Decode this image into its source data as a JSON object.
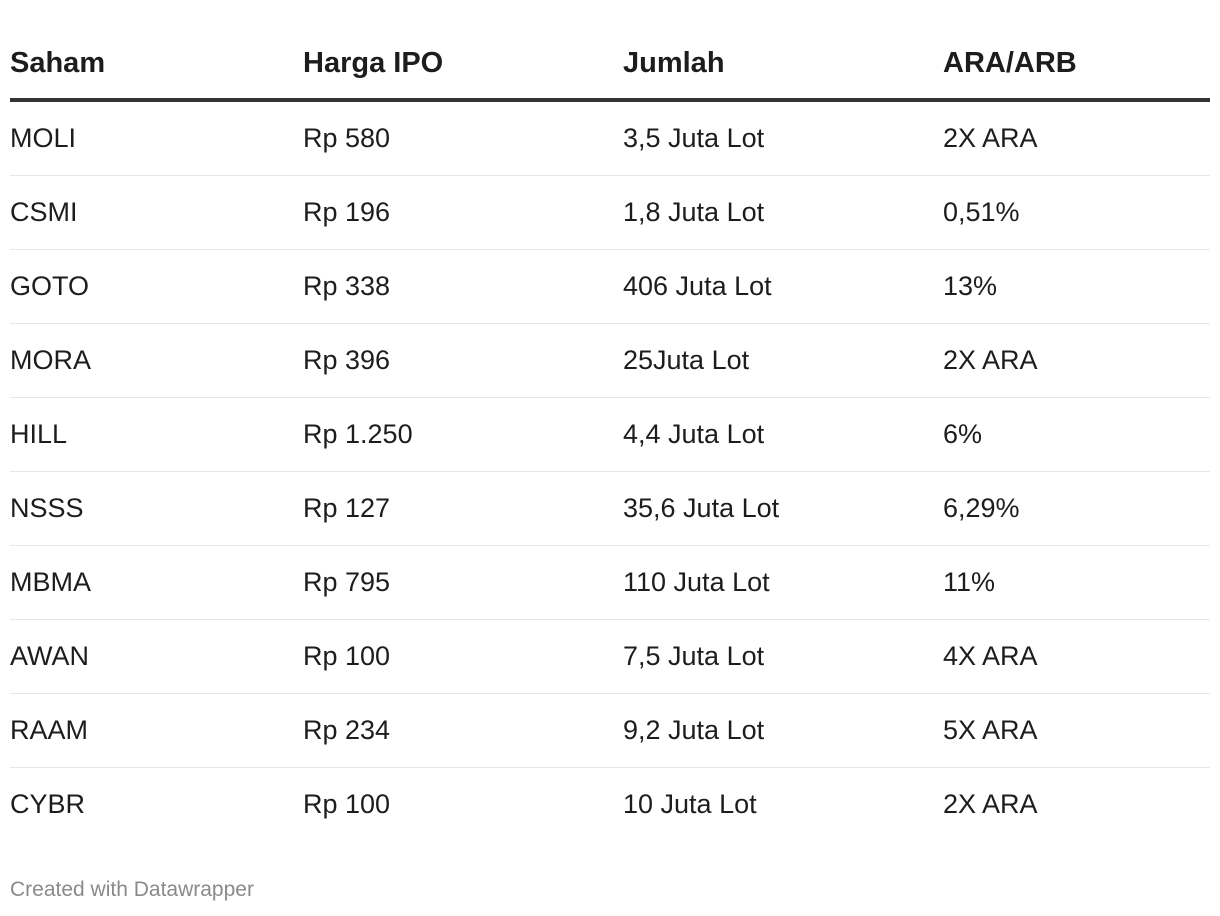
{
  "chart_data": {
    "type": "table",
    "columns": [
      "Saham",
      "Harga IPO",
      "Jumlah",
      "ARA/ARB"
    ],
    "rows": [
      [
        "MOLI",
        "Rp 580",
        "3,5 Juta Lot",
        "2X ARA"
      ],
      [
        "CSMI",
        "Rp 196",
        "1,8 Juta Lot",
        "0,51%"
      ],
      [
        "GOTO",
        "Rp 338",
        "406 Juta Lot",
        "13%"
      ],
      [
        "MORA",
        "Rp 396",
        "25Juta Lot",
        "2X ARA"
      ],
      [
        "HILL",
        "Rp 1.250",
        "4,4 Juta Lot",
        "6%"
      ],
      [
        "NSSS",
        "Rp 127",
        "35,6 Juta Lot",
        "6,29%"
      ],
      [
        "MBMA",
        "Rp 795",
        "110 Juta Lot",
        "11%"
      ],
      [
        "AWAN",
        "Rp 100",
        "7,5 Juta Lot",
        "4X ARA"
      ],
      [
        "RAAM",
        "Rp 234",
        "9,2 Juta Lot",
        "5X ARA"
      ],
      [
        "CYBR",
        "Rp 100",
        "10 Juta Lot",
        "2X ARA"
      ]
    ]
  },
  "footer": {
    "credit": "Created with Datawrapper"
  }
}
